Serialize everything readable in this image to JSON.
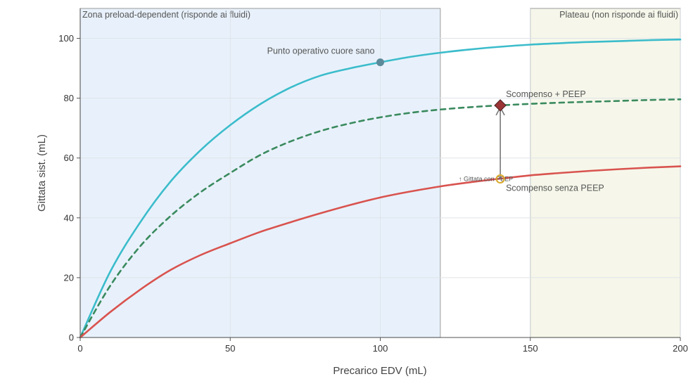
{
  "chart_data": {
    "type": "line",
    "xlabel": "Precarico EDV (mL)",
    "ylabel": "Gittata sist. (mL)",
    "xlim": [
      0,
      200
    ],
    "ylim": [
      0,
      110
    ],
    "x_ticks": [
      0,
      50,
      100,
      150,
      200
    ],
    "y_ticks": [
      0,
      20,
      40,
      60,
      80,
      100
    ],
    "grid": true,
    "zones": [
      {
        "label": "Zona preload-dependent (risponde ai fluidi)",
        "x_range": [
          0,
          120
        ],
        "color": "#e8f1fb"
      },
      {
        "label": "Plateau (non risponde ai fluidi)",
        "x_range": [
          150,
          200
        ],
        "color": "#f6f7ea"
      }
    ],
    "series": [
      {
        "color": "#3bbccb",
        "style": "solid",
        "x": [
          0,
          10,
          20,
          30,
          40,
          50,
          60,
          70,
          80,
          90,
          100,
          110,
          120,
          130,
          140,
          150,
          160,
          170,
          180,
          190,
          200
        ],
        "y": [
          0,
          22,
          38.5,
          52,
          62.5,
          71,
          78,
          83.5,
          87.5,
          90,
          92,
          93.8,
          95.2,
          96.3,
          97.2,
          97.9,
          98.4,
          98.8,
          99.1,
          99.4,
          99.6
        ]
      },
      {
        "color": "#3a8a5e",
        "style": "dashed",
        "x": [
          0,
          10,
          20,
          30,
          40,
          50,
          60,
          70,
          80,
          90,
          100,
          110,
          120,
          130,
          140,
          150,
          160,
          170,
          180,
          190,
          200
        ],
        "y": [
          0,
          17.3,
          30.5,
          40.5,
          48.5,
          55,
          61,
          65.5,
          69,
          71.6,
          73.6,
          75.1,
          76.2,
          77,
          77.6,
          78.1,
          78.5,
          78.8,
          79.1,
          79.4,
          79.6
        ]
      },
      {
        "color": "#d9534f",
        "style": "solid",
        "x": [
          0,
          10,
          20,
          30,
          40,
          50,
          60,
          70,
          80,
          90,
          100,
          110,
          120,
          130,
          140,
          150,
          160,
          170,
          180,
          190,
          200
        ],
        "y": [
          0,
          8.5,
          16,
          22.5,
          27.5,
          31.5,
          35.3,
          38.5,
          41.5,
          44.3,
          46.8,
          48.8,
          50.5,
          51.9,
          53.1,
          54.2,
          55,
          55.7,
          56.3,
          56.8,
          57.2
        ]
      }
    ],
    "points": [
      {
        "label": "Punto operativo cuore sano",
        "x": 100,
        "y": 92,
        "marker": "circle",
        "color": "#5b8a9a"
      },
      {
        "label": "Scompenso + PEEP",
        "x": 140,
        "y": 77.6,
        "marker": "diamond",
        "color": "#9b3535"
      },
      {
        "label": "Scompenso senza PEEP",
        "x": 140,
        "y": 53,
        "marker": "open-circle",
        "color": "#d9a92a"
      }
    ],
    "arrow": {
      "label": "↑ Gittata con PEEP",
      "from": [
        140,
        53
      ],
      "to": [
        140,
        77.6
      ],
      "color": "#777777"
    }
  }
}
